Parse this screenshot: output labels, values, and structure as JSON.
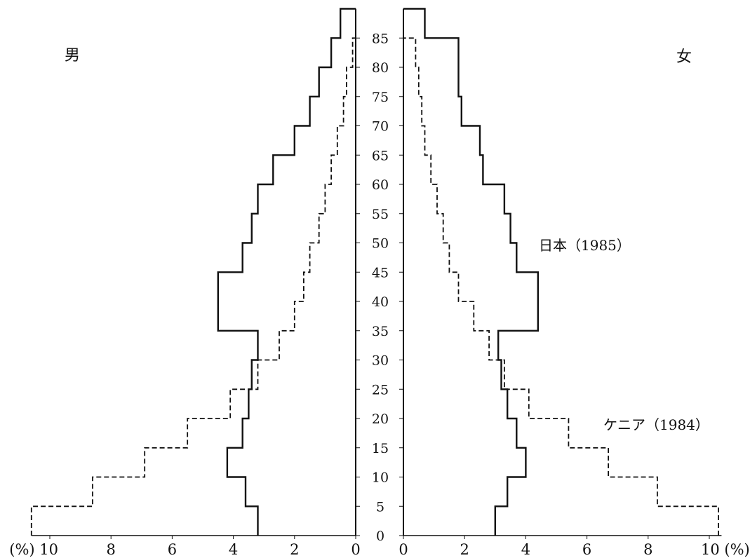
{
  "chart_data": {
    "type": "population_pyramid",
    "left_panel_label": "男",
    "right_panel_label": "女",
    "age_ticks": [
      "0",
      "5",
      "10",
      "15",
      "20",
      "25",
      "30",
      "35",
      "40",
      "45",
      "50",
      "55",
      "60",
      "65",
      "70",
      "75",
      "80",
      "85"
    ],
    "x_ticks_left": [
      "(%) 10",
      "8",
      "6",
      "4",
      "2",
      "0"
    ],
    "x_ticks_right": [
      "0",
      "2",
      "4",
      "6",
      "8",
      "10 (%)"
    ],
    "x_range_percent": [
      0,
      10.5
    ],
    "series": [
      {
        "name": "日本（1985）",
        "line_style": "solid",
        "age_bins": [
          [
            0,
            5
          ],
          [
            5,
            10
          ],
          [
            10,
            15
          ],
          [
            15,
            20
          ],
          [
            20,
            25
          ],
          [
            25,
            30
          ],
          [
            30,
            35
          ],
          [
            35,
            40
          ],
          [
            40,
            45
          ],
          [
            45,
            50
          ],
          [
            50,
            55
          ],
          [
            55,
            60
          ],
          [
            60,
            65
          ],
          [
            65,
            70
          ],
          [
            70,
            75
          ],
          [
            75,
            80
          ],
          [
            80,
            85
          ],
          [
            85,
            90
          ]
        ],
        "male": [
          3.2,
          3.6,
          4.2,
          3.7,
          3.5,
          3.4,
          3.2,
          4.5,
          4.5,
          3.7,
          3.4,
          3.2,
          2.7,
          2.0,
          1.5,
          1.2,
          0.8,
          0.5
        ],
        "female": [
          3.0,
          3.4,
          4.0,
          3.7,
          3.4,
          3.2,
          3.1,
          4.4,
          4.4,
          3.7,
          3.5,
          3.3,
          2.6,
          2.5,
          1.9,
          1.8,
          1.8,
          0.7
        ]
      },
      {
        "name": "ケニア（1984）",
        "line_style": "dashed",
        "age_bins": [
          [
            0,
            5
          ],
          [
            5,
            10
          ],
          [
            10,
            15
          ],
          [
            15,
            20
          ],
          [
            20,
            25
          ],
          [
            25,
            30
          ],
          [
            30,
            35
          ],
          [
            35,
            40
          ],
          [
            40,
            45
          ],
          [
            45,
            50
          ],
          [
            50,
            55
          ],
          [
            55,
            60
          ],
          [
            60,
            65
          ],
          [
            65,
            70
          ],
          [
            70,
            75
          ],
          [
            75,
            80
          ],
          [
            80,
            85
          ]
        ],
        "male": [
          10.6,
          8.6,
          6.9,
          5.5,
          4.1,
          3.2,
          2.5,
          2.0,
          1.7,
          1.5,
          1.2,
          1.0,
          0.8,
          0.6,
          0.4,
          0.3,
          0.1
        ],
        "female": [
          10.3,
          8.3,
          6.7,
          5.4,
          4.1,
          3.3,
          2.8,
          2.3,
          1.8,
          1.5,
          1.3,
          1.1,
          0.9,
          0.7,
          0.6,
          0.5,
          0.4
        ]
      }
    ]
  }
}
